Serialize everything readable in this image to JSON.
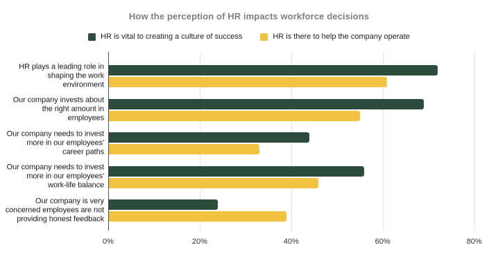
{
  "title": "How the perception of HR impacts workforce decisions",
  "legend": [
    {
      "label": "HR is vital to creating a culture of success",
      "color": "#2d4d3c"
    },
    {
      "label": "HR is there to help the company operate",
      "color": "#f0c343"
    }
  ],
  "chart_data": {
    "type": "bar",
    "orientation": "horizontal",
    "title": "How the perception of HR impacts workforce decisions",
    "categories": [
      "HR plays a leading role in\nshaping the work\nenvironment",
      "Our company invests about\nthe right amount in\nemployees",
      "Our company needs to invest\nmore in our employees'\ncareer paths",
      "Our company needs to invest\nmore in our employees'\nwork-life balance",
      "Our company is very\nconcerned employees are not\nproviding honest feedback"
    ],
    "series": [
      {
        "name": "HR is vital to creating a culture of success",
        "color": "#2d4d3c",
        "values": [
          72,
          69,
          44,
          56,
          24
        ]
      },
      {
        "name": "HR is there to help the company operate",
        "color": "#f0c343",
        "values": [
          61,
          55,
          33,
          46,
          39
        ]
      }
    ],
    "x_ticks": [
      "0%",
      "20%",
      "40%",
      "60%",
      "80%"
    ],
    "x_tick_values": [
      0,
      20,
      40,
      60,
      80
    ],
    "xlim": [
      0,
      84
    ],
    "xlabel": "",
    "ylabel": "",
    "grid": "vertical",
    "legend_position": "top-center"
  }
}
